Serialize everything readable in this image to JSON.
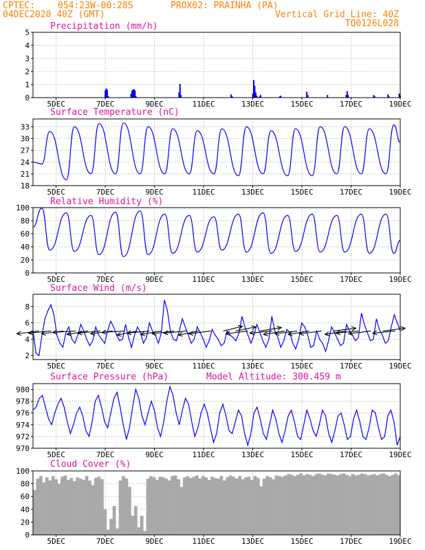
{
  "header": {
    "source": "CPTEC:",
    "coords": "054:23W-00:28S",
    "station": "PROX02: PRAINHA (PA)",
    "init": "04DEC2020 40Z (GMT)",
    "vgrid": "Vertical Grid Line: 40Z",
    "run_id": "TQ0126L028"
  },
  "colors": {
    "header": "#ff7f00",
    "panel_title": "#e0129a",
    "line": "#0000ff",
    "cloud": "#a9a9a9",
    "grid": "#a8a8a8"
  },
  "chart_data": [
    {
      "id": "precip",
      "type": "bar",
      "title": "Precipitation (mm/h)",
      "ylim": [
        0,
        5
      ],
      "yticks": [
        0,
        1,
        2,
        3,
        4,
        5
      ],
      "x_range_days": [
        4.06,
        19.0
      ],
      "x_ticks": [
        "5DEC",
        "7DEC",
        "9DEC",
        "11DEC",
        "13DEC",
        "15DEC",
        "17DEC",
        "19DEC"
      ],
      "x_tick_days": [
        5,
        7,
        9,
        11,
        13,
        15,
        17,
        19
      ],
      "bars": [
        [
          7.0,
          0.55
        ],
        [
          7.04,
          0.7
        ],
        [
          7.08,
          0.6
        ],
        [
          7.12,
          0.1
        ],
        [
          8.05,
          0.3
        ],
        [
          8.09,
          0.55
        ],
        [
          8.13,
          0.6
        ],
        [
          8.17,
          0.65
        ],
        [
          8.21,
          0.55
        ],
        [
          8.25,
          0.1
        ],
        [
          10.0,
          0.4
        ],
        [
          10.04,
          1.05
        ],
        [
          10.08,
          0.2
        ],
        [
          12.12,
          0.25
        ],
        [
          12.16,
          0.1
        ],
        [
          13.0,
          0.3
        ],
        [
          13.04,
          1.35
        ],
        [
          13.08,
          0.9
        ],
        [
          13.12,
          0.4
        ],
        [
          13.16,
          0.15
        ],
        [
          13.28,
          0.1
        ],
        [
          13.32,
          0.2
        ],
        [
          14.1,
          0.1
        ],
        [
          14.14,
          0.15
        ],
        [
          15.2,
          0.45
        ],
        [
          15.24,
          0.2
        ],
        [
          16.04,
          0.2
        ],
        [
          16.8,
          0.2
        ],
        [
          16.84,
          0.5
        ],
        [
          16.88,
          0.2
        ],
        [
          17.92,
          0.2
        ],
        [
          17.96,
          0.1
        ],
        [
          18.5,
          0.25
        ],
        [
          18.54,
          0.1
        ],
        [
          18.96,
          0.3
        ],
        [
          19.0,
          0.15
        ]
      ]
    },
    {
      "id": "temp",
      "type": "line",
      "title": "Surface Temperature (nC)",
      "ylim": [
        18,
        35
      ],
      "yticks": [
        18,
        21,
        24,
        27,
        30,
        33
      ],
      "x_range_days": [
        4.06,
        19.0
      ],
      "x_ticks": [
        "5DEC",
        "7DEC",
        "9DEC",
        "11DEC",
        "13DEC",
        "15DEC",
        "17DEC",
        "19DEC"
      ],
      "x_tick_days": [
        5,
        7,
        9,
        11,
        13,
        15,
        17,
        19
      ],
      "min_hour": 0.42,
      "max_hour": 0.74,
      "daily_min": [
        23.5,
        19.5,
        21.0,
        21.0,
        21.0,
        21.0,
        21.0,
        21.0,
        20.5,
        21.0,
        20.5,
        20.5,
        21.0,
        21.0,
        21.0
      ],
      "daily_max": [
        31.8,
        33.0,
        33.8,
        34.0,
        33.0,
        32.5,
        32.0,
        32.5,
        33.0,
        32.0,
        32.5,
        33.0,
        33.0,
        32.5,
        33.5
      ]
    },
    {
      "id": "rh",
      "type": "line",
      "title": "Relative Humidity (%)",
      "ylim": [
        0,
        100
      ],
      "yticks": [
        0,
        20,
        40,
        60,
        80,
        100
      ],
      "x_range_days": [
        4.06,
        19.0
      ],
      "x_ticks": [
        "5DEC",
        "7DEC",
        "9DEC",
        "11DEC",
        "13DEC",
        "15DEC",
        "17DEC",
        "19DEC"
      ],
      "x_tick_days": [
        5,
        7,
        9,
        11,
        13,
        15,
        17,
        19
      ],
      "min_hour": 0.74,
      "max_hour": 0.42,
      "daily_min": [
        35,
        33,
        28,
        25,
        28,
        30,
        32,
        35,
        32,
        30,
        33,
        32,
        32,
        30,
        30
      ],
      "daily_max": [
        99,
        92,
        88,
        93,
        95,
        90,
        88,
        86,
        90,
        92,
        88,
        90,
        88,
        90,
        90
      ]
    },
    {
      "id": "wind",
      "type": "line",
      "title": "Surface Wind (m/s)",
      "ylim": [
        1.5,
        9.5
      ],
      "yticks": [
        2,
        4,
        6,
        8
      ],
      "x_range_days": [
        4.06,
        19.0
      ],
      "x_ticks": [
        "5DEC",
        "7DEC",
        "9DEC",
        "11DEC",
        "13DEC",
        "15DEC",
        "17DEC",
        "19DEC"
      ],
      "x_tick_days": [
        5,
        7,
        9,
        11,
        13,
        15,
        17,
        19
      ],
      "speed": [
        5.0,
        2.3,
        2.0,
        4.5,
        6.5,
        7.5,
        8.2,
        7.0,
        4.5,
        3.5,
        3.0,
        4.8,
        5.5,
        4.0,
        3.5,
        4.5,
        5.8,
        5.0,
        4.0,
        3.2,
        3.8,
        5.5,
        4.5,
        4.0,
        3.5,
        5.0,
        6.2,
        5.5,
        4.5,
        3.8,
        4.0,
        5.8,
        4.2,
        3.0,
        4.5,
        5.5,
        4.8,
        3.5,
        4.2,
        6.0,
        5.0,
        4.5,
        3.5,
        4.8,
        8.8,
        7.5,
        5.0,
        4.0,
        3.8,
        5.0,
        6.5,
        5.5,
        4.5,
        3.5,
        4.0,
        5.5,
        4.8,
        4.0,
        3.0,
        3.8,
        5.2,
        4.5,
        4.0,
        3.2,
        3.5,
        5.0,
        4.5,
        4.2,
        3.8,
        4.8,
        6.8,
        5.5,
        4.5,
        3.5,
        4.5,
        5.8,
        4.8,
        3.8,
        3.0,
        4.0,
        6.8,
        5.0,
        4.2,
        3.0,
        3.8,
        5.2,
        4.8,
        3.5,
        2.8,
        4.0,
        6.0,
        5.5,
        4.5,
        3.0,
        3.2,
        5.0,
        4.0,
        3.5,
        2.5,
        3.8,
        5.5,
        4.8,
        4.0,
        3.2,
        3.5,
        5.8,
        5.0,
        4.5,
        3.8,
        4.2,
        7.2,
        5.8,
        4.8,
        3.8,
        4.0,
        6.5,
        5.2,
        4.5,
        3.5,
        3.8,
        5.5,
        7.0,
        6.0,
        5.0
      ],
      "arrow_days": [
        4.3,
        4.8,
        5.3,
        5.8,
        6.3,
        6.8,
        7.3,
        7.8,
        8.3,
        8.8,
        9.3,
        9.8,
        10.3,
        10.8,
        11.3,
        11.8,
        12.3,
        12.8,
        13.3,
        13.8,
        14.3,
        14.8,
        15.3,
        15.8,
        16.3,
        16.8,
        17.3,
        17.8,
        18.3,
        18.8
      ],
      "arrow_dir": [
        200,
        195,
        200,
        190,
        205,
        195,
        200,
        190,
        210,
        195,
        205,
        200,
        195,
        210,
        200,
        35,
        30,
        200,
        25,
        195,
        205,
        200,
        205,
        200,
        20,
        205,
        195,
        200,
        20,
        195
      ]
    },
    {
      "id": "pres",
      "type": "line",
      "title": "Surface Pressure (hPa)",
      "annotation": "Model Altitude: 300.459 m",
      "ylim": [
        970,
        981
      ],
      "yticks": [
        970,
        972,
        974,
        976,
        978,
        980
      ],
      "x_range_days": [
        4.06,
        19.0
      ],
      "x_ticks": [
        "5DEC",
        "7DEC",
        "9DEC",
        "11DEC",
        "13DEC",
        "15DEC",
        "17DEC",
        "19DEC"
      ],
      "x_tick_days": [
        5,
        7,
        9,
        11,
        13,
        15,
        17,
        19
      ],
      "values": [
        976.5,
        977.0,
        978.5,
        979.0,
        977.0,
        975.0,
        974.0,
        976.0,
        977.5,
        978.5,
        977.0,
        974.5,
        972.5,
        974.0,
        976.0,
        977.0,
        975.5,
        973.0,
        972.0,
        974.5,
        978.0,
        979.0,
        977.0,
        974.5,
        973.5,
        976.0,
        978.5,
        979.5,
        977.0,
        974.0,
        971.5,
        973.5,
        977.0,
        980.0,
        978.5,
        975.5,
        974.0,
        976.0,
        978.0,
        976.5,
        973.5,
        972.0,
        974.5,
        978.0,
        980.5,
        979.0,
        976.0,
        974.0,
        976.5,
        978.5,
        977.5,
        974.5,
        972.0,
        973.5,
        976.0,
        977.5,
        976.0,
        973.5,
        971.0,
        972.5,
        976.0,
        977.5,
        975.5,
        973.0,
        972.5,
        974.5,
        976.5,
        975.5,
        972.5,
        970.5,
        972.5,
        976.0,
        977.0,
        975.0,
        972.5,
        971.5,
        974.0,
        976.5,
        975.0,
        972.5,
        971.0,
        973.0,
        975.5,
        976.5,
        974.5,
        972.0,
        971.5,
        974.0,
        976.5,
        975.0,
        973.0,
        972.0,
        974.0,
        976.5,
        975.5,
        972.5,
        971.0,
        973.0,
        975.5,
        976.0,
        974.0,
        971.5,
        972.0,
        975.0,
        976.5,
        974.5,
        972.0,
        971.5,
        973.5,
        976.5,
        976.0,
        973.5,
        971.5,
        972.0,
        975.5,
        976.5,
        974.5,
        970.5,
        972.0
      ]
    },
    {
      "id": "cloud",
      "type": "area",
      "title": "Cloud Cover (%)",
      "ylim": [
        0,
        100
      ],
      "yticks": [
        0,
        20,
        40,
        60,
        80,
        100
      ],
      "x_range_days": [
        4.06,
        19.0
      ],
      "x_ticks": [
        "5DEC",
        "7DEC",
        "9DEC",
        "11DEC",
        "13DEC",
        "15DEC",
        "17DEC",
        "19DEC"
      ],
      "x_tick_days": [
        5,
        7,
        9,
        11,
        13,
        15,
        17,
        19
      ],
      "values": [
        70,
        88,
        92,
        82,
        90,
        85,
        92,
        87,
        80,
        91,
        93,
        86,
        89,
        84,
        90,
        88,
        86,
        92,
        85,
        78,
        89,
        91,
        87,
        40,
        8,
        25,
        45,
        10,
        85,
        92,
        88,
        75,
        30,
        45,
        12,
        30,
        6,
        88,
        92,
        90,
        86,
        91,
        90,
        88,
        85,
        92,
        93,
        87,
        75,
        90,
        92,
        89,
        91,
        93,
        88,
        92,
        90,
        86,
        91,
        89,
        88,
        92,
        85,
        90,
        93,
        91,
        88,
        92,
        87,
        90,
        91,
        86,
        92,
        89,
        76,
        88,
        92,
        90,
        87,
        93,
        92,
        91,
        93,
        95,
        94,
        92,
        94,
        96,
        93,
        95,
        94,
        92,
        95,
        96,
        94,
        93,
        96,
        95,
        94,
        93,
        95,
        96,
        94,
        92,
        95,
        93,
        94,
        96,
        95,
        93,
        94,
        95,
        93,
        95,
        96,
        94,
        92,
        94,
        96,
        93
      ]
    }
  ]
}
